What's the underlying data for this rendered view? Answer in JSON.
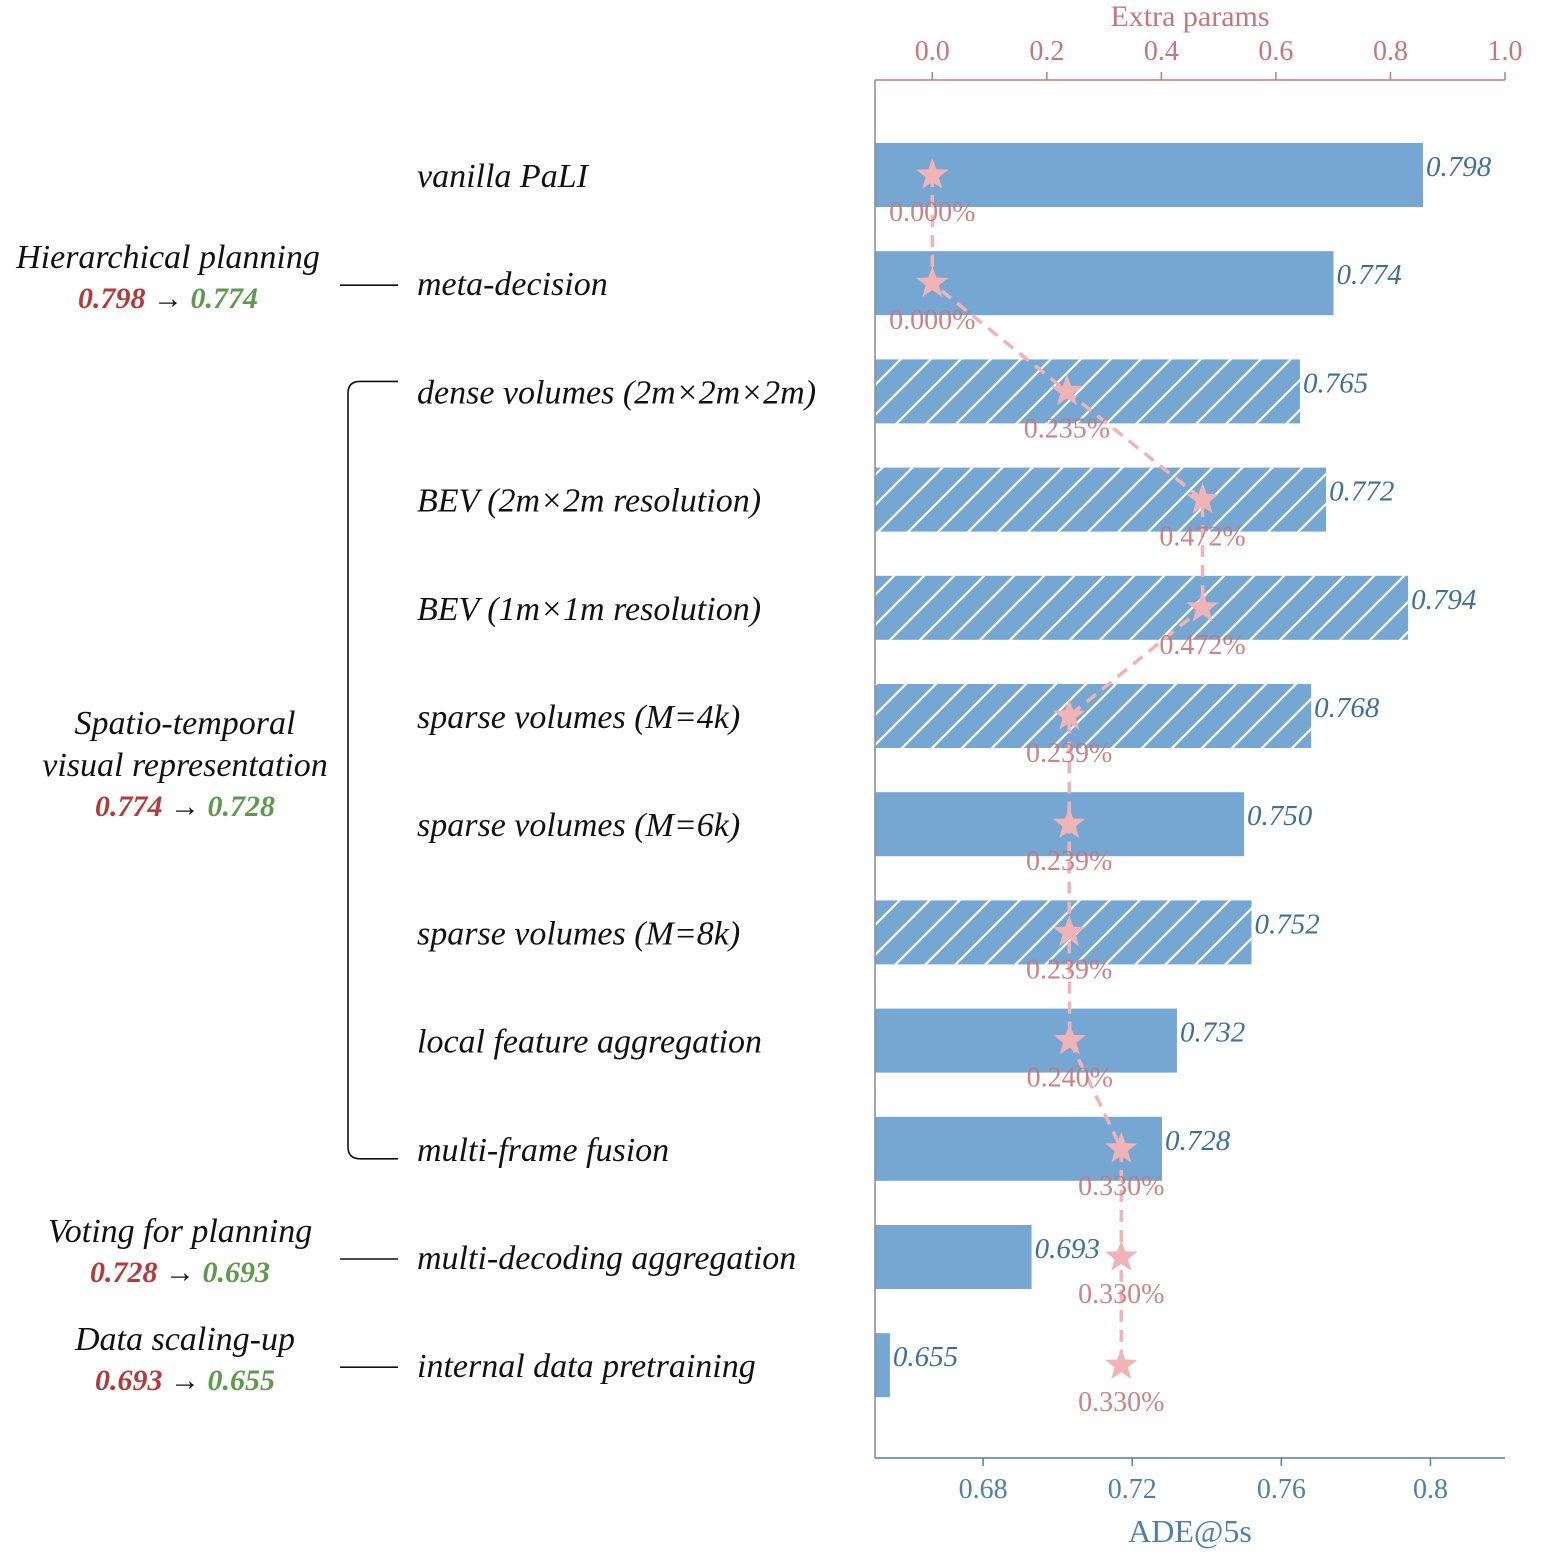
{
  "chart_data": {
    "type": "bar",
    "orientation": "horizontal",
    "xlabel": "ADE@5s",
    "xlim": [
      0.651,
      0.82
    ],
    "xticks": [
      0.68,
      0.72,
      0.76,
      0.8
    ],
    "xtick_labels": [
      "0.68",
      "0.72",
      "0.76",
      "0.8"
    ],
    "top_axis": {
      "label": "Extra params",
      "lim": [
        -0.1,
        1.0
      ],
      "ticks": [
        0.0,
        0.2,
        0.4,
        0.6,
        0.8,
        1.0
      ],
      "tick_labels": [
        "0.0",
        "0.2",
        "0.4",
        "0.6",
        "0.8",
        "1.0"
      ]
    },
    "categories": [
      "vanilla PaLI",
      "meta-decision",
      "dense volumes (2m×2m×2m)",
      "BEV (2m×2m resolution)",
      "BEV (1m×1m resolution)",
      "sparse volumes (M=4k)",
      "sparse volumes (M=6k)",
      "sparse volumes (M=8k)",
      "local feature aggregation",
      "multi-frame fusion",
      "multi-decoding aggregation",
      "internal data pretraining"
    ],
    "series": [
      {
        "values": [
          0.798,
          0.774,
          0.765,
          0.772,
          0.794,
          0.768,
          0.75,
          0.752,
          0.732,
          0.728,
          0.693,
          0.655
        ],
        "labels": [
          "0.798",
          "0.774",
          "0.765",
          "0.772",
          "0.794",
          "0.768",
          "0.750",
          "0.752",
          "0.732",
          "0.728",
          "0.693",
          "0.655"
        ],
        "hatched": [
          false,
          false,
          true,
          true,
          true,
          true,
          false,
          true,
          false,
          false,
          false,
          false
        ],
        "color": "#76a7d3"
      },
      {
        "axis": "top",
        "marker": "star",
        "values": [
          0.0,
          0.0,
          0.235,
          0.472,
          0.472,
          0.239,
          0.239,
          0.239,
          0.24,
          0.33,
          0.33,
          0.33
        ],
        "labels": [
          "0.000%",
          "0.000%",
          "0.235%",
          "0.472%",
          "0.472%",
          "0.239%",
          "0.239%",
          "0.239%",
          "0.240%",
          "0.330%",
          "0.330%",
          "0.330%"
        ],
        "color": "#f0b3b6"
      }
    ],
    "groups": [
      {
        "title": [
          "Hierarchical planning"
        ],
        "from": "0.798",
        "arrow": "→",
        "to": "0.774",
        "rows": [
          1,
          1
        ]
      },
      {
        "title": [
          "Spatio-temporal",
          "visual representation"
        ],
        "from": "0.774",
        "arrow": "→",
        "to": "0.728",
        "rows": [
          2,
          9
        ]
      },
      {
        "title": [
          "Voting for planning"
        ],
        "from": "0.728",
        "arrow": "→",
        "to": "0.693",
        "rows": [
          10,
          10
        ]
      },
      {
        "title": [
          "Data scaling-up"
        ],
        "from": "0.693",
        "arrow": "→",
        "to": "0.655",
        "rows": [
          11,
          11
        ]
      }
    ],
    "colors": {
      "bar": "#76a7d3",
      "bar_text": "#3d6e9e",
      "axis_bottom": "#4f7fae",
      "axis_top": "#c77579",
      "params": "#f0b3b6",
      "from_value": "#b23a3a",
      "to_value": "#5e9a4e"
    },
    "grid": false,
    "legend": "none"
  }
}
